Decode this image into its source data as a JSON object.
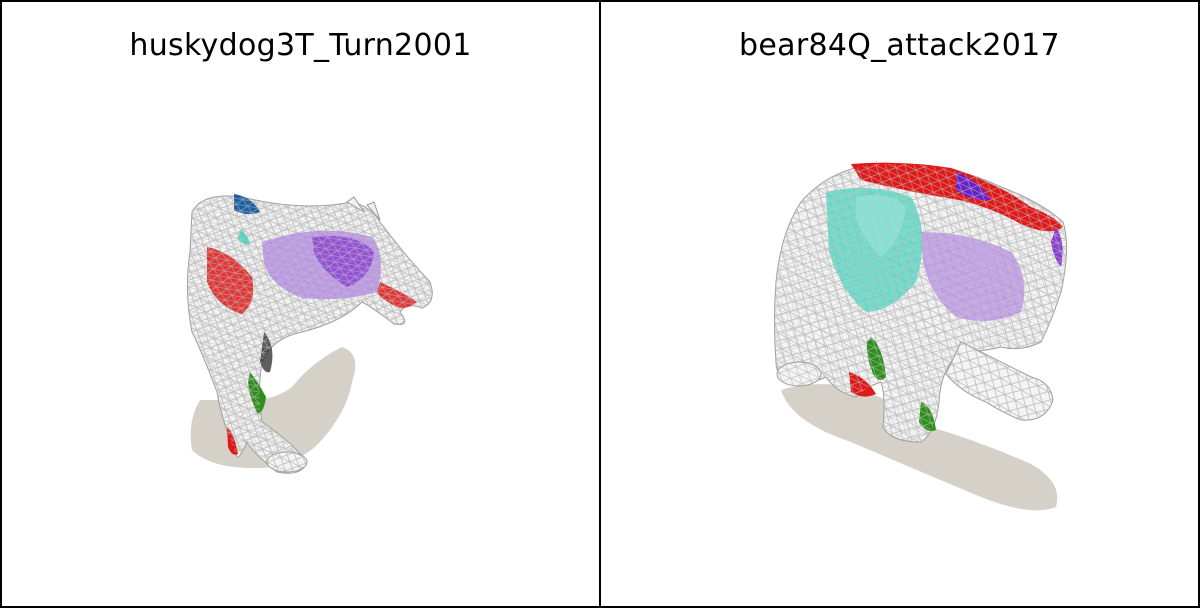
{
  "panels": [
    {
      "title": "huskydog3T_Turn2001",
      "subject_icon": "husky-dog-wireframe-mesh-icon",
      "shadow_color": "#d5d1c9"
    },
    {
      "title": "bear84Q_attack2017",
      "subject_icon": "bear-wireframe-mesh-icon",
      "shadow_color": "#d5d1c9"
    }
  ],
  "colors": {
    "wire": "#c8c8c8",
    "fill_red": "#e01818",
    "fill_purple": "#8a3fd1",
    "fill_violet": "#b58ae6",
    "fill_teal": "#4fd6c2",
    "fill_blue": "#1d5fa0",
    "fill_green": "#2f8f1c",
    "border": "#000000"
  }
}
